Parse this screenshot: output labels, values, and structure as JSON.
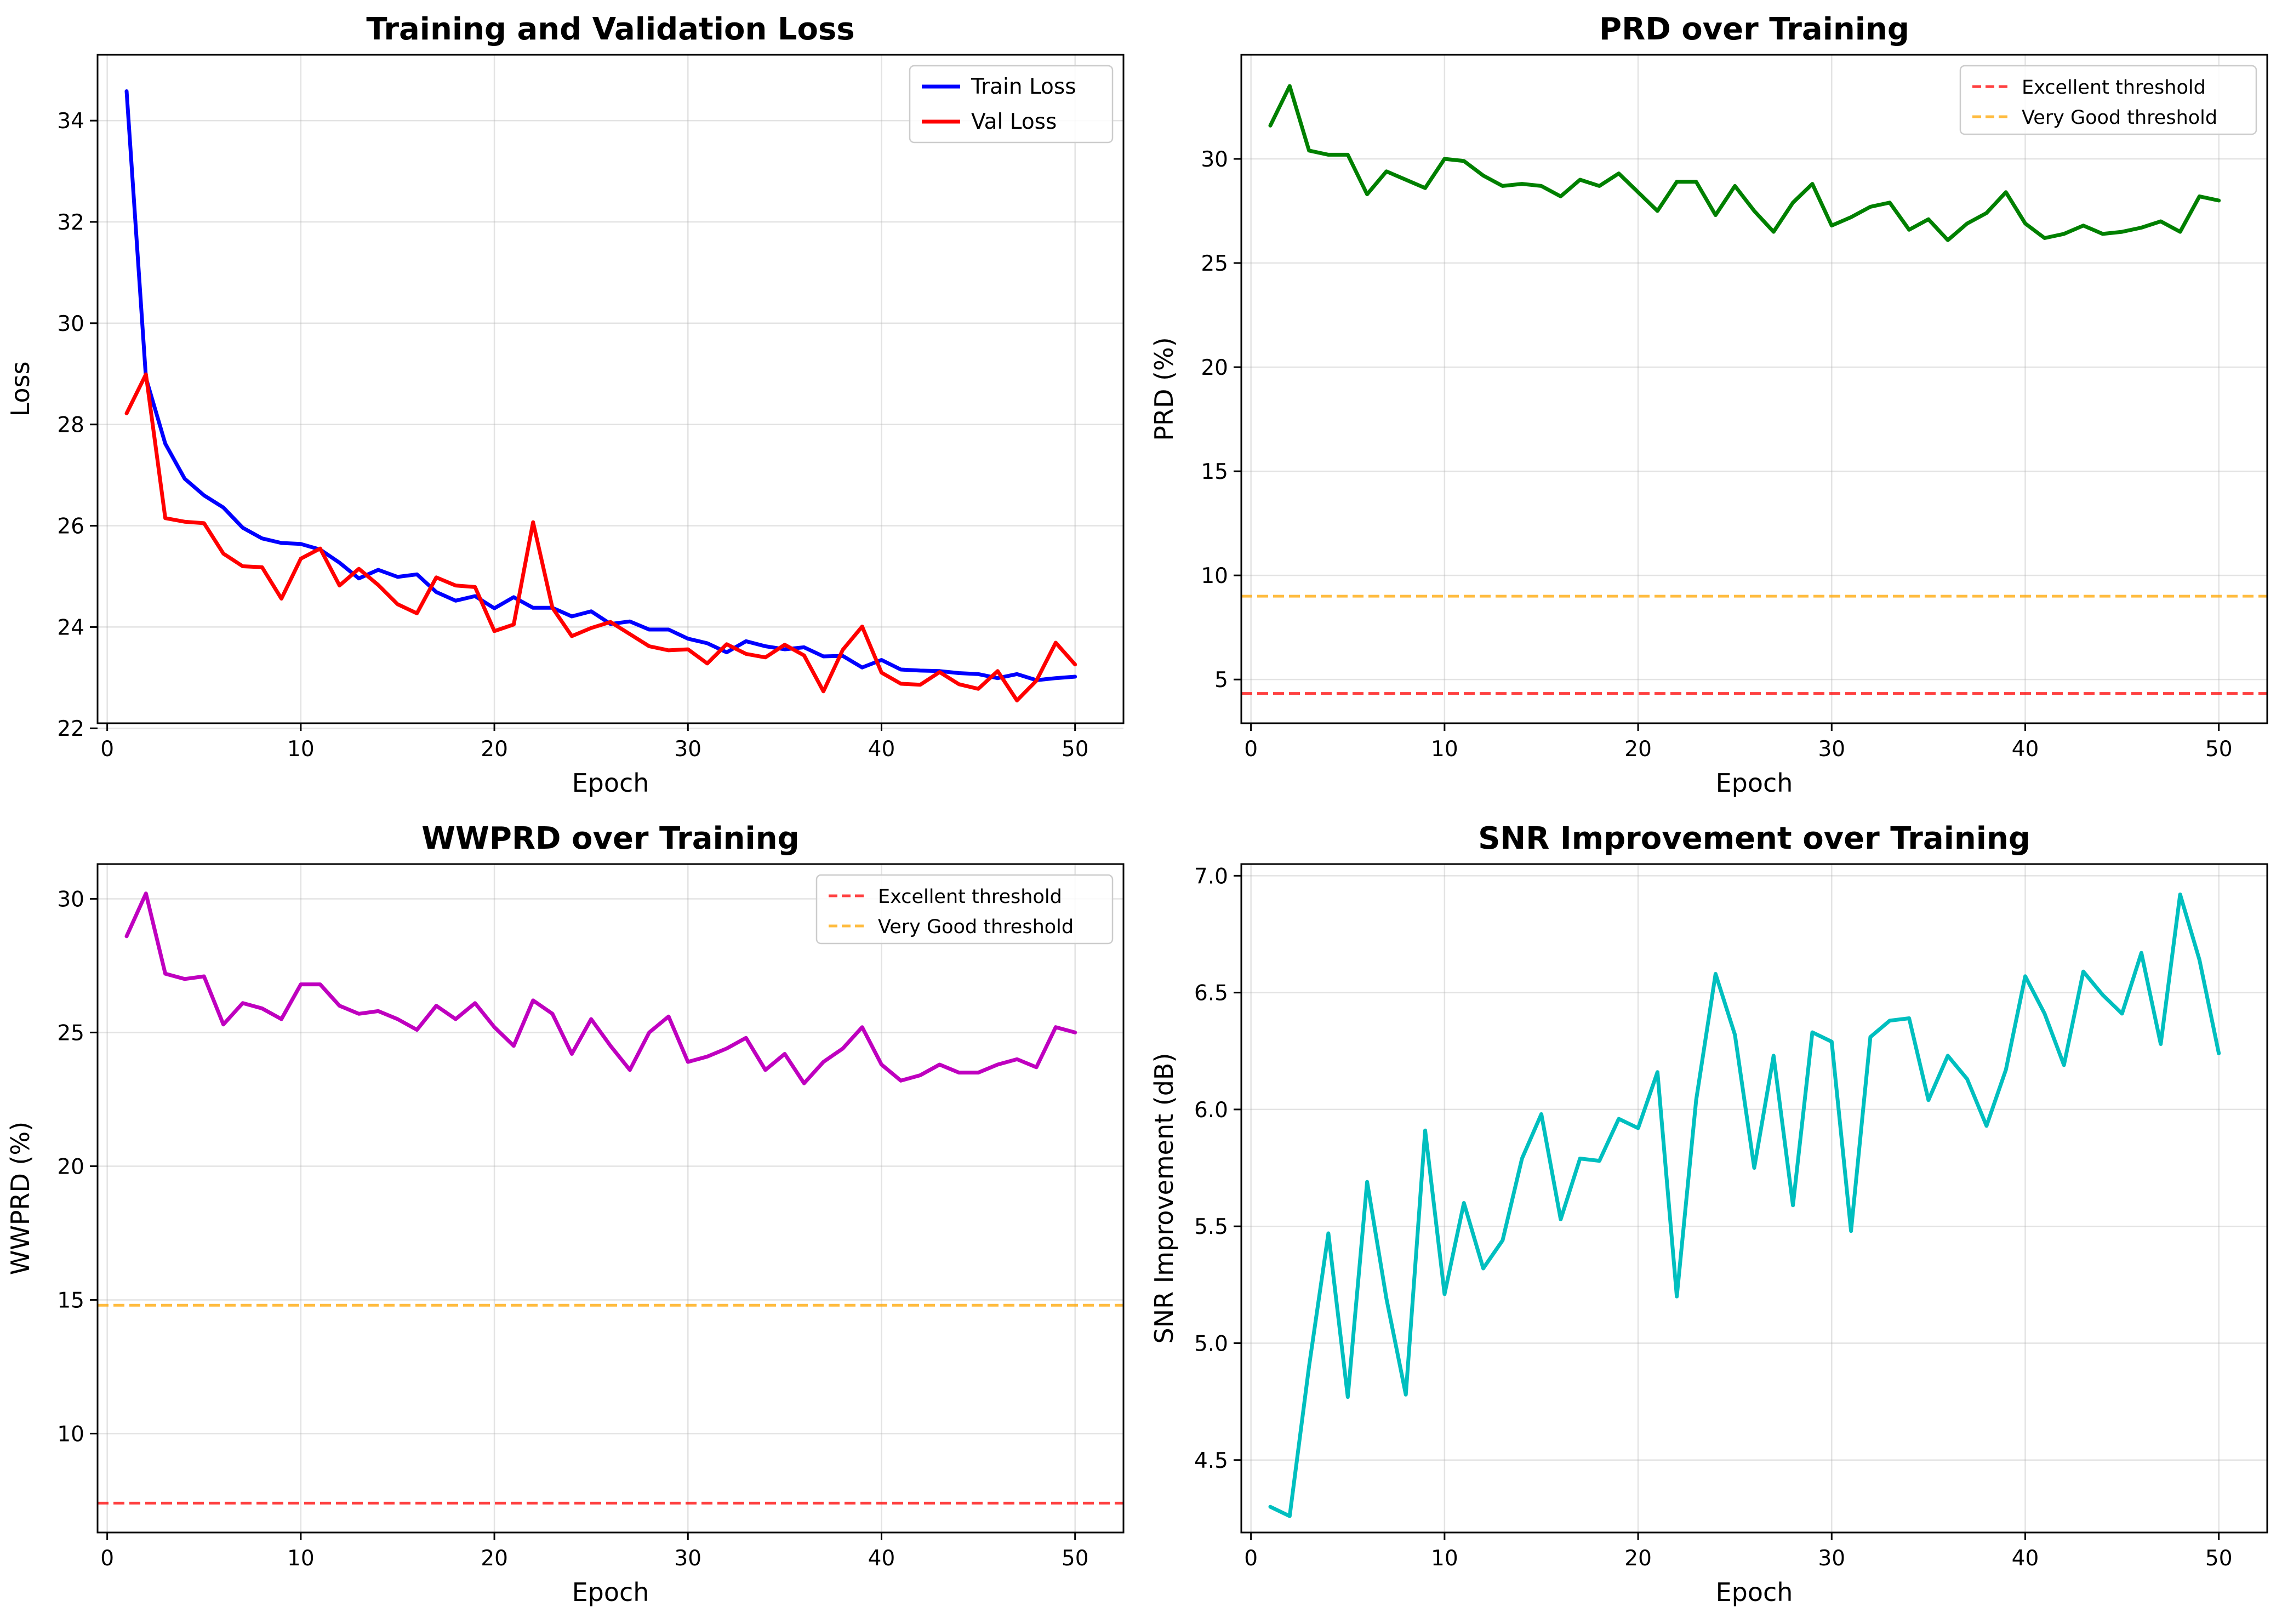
{
  "chart_data": [
    {
      "type": "line",
      "title": "Training and Validation Loss",
      "xlabel": "Epoch",
      "ylabel": "Loss",
      "xlim": [
        -0.5,
        52.5
      ],
      "ylim": [
        22.1,
        35.3
      ],
      "xticks": [
        0,
        10,
        20,
        30,
        40,
        50
      ],
      "yticks": [
        22,
        24,
        26,
        28,
        30,
        32,
        34
      ],
      "grid": true,
      "legend_position": "top-right",
      "x": [
        1,
        2,
        3,
        4,
        5,
        6,
        7,
        8,
        9,
        10,
        11,
        12,
        13,
        14,
        15,
        16,
        17,
        18,
        19,
        20,
        21,
        22,
        23,
        24,
        25,
        26,
        27,
        28,
        29,
        30,
        31,
        32,
        33,
        34,
        35,
        36,
        37,
        38,
        39,
        40,
        41,
        42,
        43,
        44,
        45,
        46,
        47,
        48,
        49,
        50
      ],
      "series": [
        {
          "name": "Train Loss",
          "color": "#0000ff",
          "dashed": false,
          "values": [
            34.58,
            28.92,
            27.62,
            26.93,
            26.6,
            26.36,
            25.96,
            25.75,
            25.66,
            25.64,
            25.53,
            25.27,
            24.96,
            25.13,
            24.99,
            25.04,
            24.69,
            24.52,
            24.61,
            24.37,
            24.59,
            24.38,
            24.38,
            24.21,
            24.31,
            24.06,
            24.11,
            23.95,
            23.95,
            23.77,
            23.68,
            23.5,
            23.72,
            23.62,
            23.56,
            23.6,
            23.42,
            23.43,
            23.2,
            23.35,
            23.16,
            23.14,
            23.13,
            23.09,
            23.07,
            22.99,
            23.07,
            22.95,
            22.99,
            23.02
          ]
        },
        {
          "name": "Val Loss",
          "color": "#ff0000",
          "dashed": false,
          "values": [
            28.22,
            28.99,
            26.15,
            26.08,
            26.05,
            25.45,
            25.2,
            25.18,
            24.56,
            25.35,
            25.55,
            24.82,
            25.15,
            24.83,
            24.45,
            24.27,
            24.98,
            24.82,
            24.79,
            23.92,
            24.05,
            26.07,
            24.38,
            23.82,
            23.98,
            24.1,
            23.86,
            23.62,
            23.54,
            23.56,
            23.28,
            23.66,
            23.47,
            23.4,
            23.65,
            23.44,
            22.73,
            23.55,
            24.01,
            23.1,
            22.88,
            22.86,
            23.11,
            22.87,
            22.78,
            23.13,
            22.55,
            22.94,
            23.69,
            23.26
          ]
        }
      ]
    },
    {
      "type": "line",
      "title": "PRD over Training",
      "xlabel": "Epoch",
      "ylabel": "PRD (%)",
      "xlim": [
        -0.5,
        52.5
      ],
      "ylim": [
        2.9,
        35.0
      ],
      "xticks": [
        0,
        10,
        20,
        30,
        40,
        50
      ],
      "yticks": [
        5,
        10,
        15,
        20,
        25,
        30
      ],
      "grid": true,
      "legend_position": "top-right",
      "x": [
        1,
        2,
        3,
        4,
        5,
        6,
        7,
        8,
        9,
        10,
        11,
        12,
        13,
        14,
        15,
        16,
        17,
        18,
        19,
        20,
        21,
        22,
        23,
        24,
        25,
        26,
        27,
        28,
        29,
        30,
        31,
        32,
        33,
        34,
        35,
        36,
        37,
        38,
        39,
        40,
        41,
        42,
        43,
        44,
        45,
        46,
        47,
        48,
        49,
        50
      ],
      "series": [
        {
          "name": "",
          "color": "#008000",
          "dashed": false,
          "values": [
            31.6,
            33.5,
            30.4,
            30.2,
            30.2,
            28.3,
            29.4,
            29.0,
            28.6,
            30.0,
            29.9,
            29.2,
            28.7,
            28.8,
            28.7,
            28.2,
            29.0,
            28.7,
            29.3,
            28.4,
            27.5,
            28.9,
            28.9,
            27.3,
            28.7,
            27.5,
            26.5,
            27.9,
            28.8,
            26.8,
            27.2,
            27.7,
            27.9,
            26.6,
            27.1,
            26.1,
            26.9,
            27.4,
            28.4,
            26.9,
            26.2,
            26.4,
            26.8,
            26.4,
            26.5,
            26.7,
            27.0,
            26.5,
            28.2,
            28.0
          ]
        }
      ],
      "reference_lines": [
        {
          "name": "Excellent threshold",
          "value": 4.33,
          "color": "#ff0000"
        },
        {
          "name": "Very Good threshold",
          "value": 9.0,
          "color": "#ffa500"
        }
      ]
    },
    {
      "type": "line",
      "title": "WWPRD over Training",
      "xlabel": "Epoch",
      "ylabel": "WWPRD (%)",
      "xlim": [
        -0.5,
        52.5
      ],
      "ylim": [
        6.3,
        31.3
      ],
      "xticks": [
        0,
        10,
        20,
        30,
        40,
        50
      ],
      "yticks": [
        10,
        15,
        20,
        25,
        30
      ],
      "grid": true,
      "legend_position": "top-right",
      "x": [
        1,
        2,
        3,
        4,
        5,
        6,
        7,
        8,
        9,
        10,
        11,
        12,
        13,
        14,
        15,
        16,
        17,
        18,
        19,
        20,
        21,
        22,
        23,
        24,
        25,
        26,
        27,
        28,
        29,
        30,
        31,
        32,
        33,
        34,
        35,
        36,
        37,
        38,
        39,
        40,
        41,
        42,
        43,
        44,
        45,
        46,
        47,
        48,
        49,
        50
      ],
      "series": [
        {
          "name": "",
          "color": "#bf00bf",
          "dashed": false,
          "values": [
            28.6,
            30.2,
            27.2,
            27.0,
            27.1,
            25.3,
            26.1,
            25.9,
            25.5,
            26.8,
            26.8,
            26.0,
            25.7,
            25.8,
            25.5,
            25.1,
            26.0,
            25.5,
            26.1,
            25.2,
            24.5,
            26.2,
            25.7,
            24.2,
            25.5,
            24.5,
            23.6,
            25.0,
            25.6,
            23.9,
            24.1,
            24.4,
            24.8,
            23.6,
            24.2,
            23.1,
            23.9,
            24.4,
            25.2,
            23.8,
            23.2,
            23.4,
            23.8,
            23.5,
            23.5,
            23.8,
            24.0,
            23.7,
            25.2,
            25.0
          ]
        }
      ],
      "reference_lines": [
        {
          "name": "Excellent threshold",
          "value": 7.4,
          "color": "#ff0000"
        },
        {
          "name": "Very Good threshold",
          "value": 14.8,
          "color": "#ffa500"
        }
      ]
    },
    {
      "type": "line",
      "title": "SNR Improvement over Training",
      "xlabel": "Epoch",
      "ylabel": "SNR Improvement (dB)",
      "xlim": [
        -0.5,
        52.5
      ],
      "ylim": [
        4.19,
        7.05
      ],
      "xticks": [
        0,
        10,
        20,
        30,
        40,
        50
      ],
      "yticks": [
        4.5,
        5.0,
        5.5,
        6.0,
        6.5,
        7.0
      ],
      "yticklabels": [
        "4.5",
        "5.0",
        "5.5",
        "6.0",
        "6.5",
        "7.0"
      ],
      "grid": true,
      "legend_position": "none",
      "x": [
        1,
        2,
        3,
        4,
        5,
        6,
        7,
        8,
        9,
        10,
        11,
        12,
        13,
        14,
        15,
        16,
        17,
        18,
        19,
        20,
        21,
        22,
        23,
        24,
        25,
        26,
        27,
        28,
        29,
        30,
        31,
        32,
        33,
        34,
        35,
        36,
        37,
        38,
        39,
        40,
        41,
        42,
        43,
        44,
        45,
        46,
        47,
        48,
        49,
        50
      ],
      "series": [
        {
          "name": "",
          "color": "#00bfbf",
          "dashed": false,
          "values": [
            4.3,
            4.26,
            4.9,
            5.47,
            4.77,
            5.69,
            5.19,
            4.78,
            5.91,
            5.21,
            5.6,
            5.32,
            5.44,
            5.79,
            5.98,
            5.53,
            5.79,
            5.78,
            5.96,
            5.92,
            6.16,
            5.2,
            6.04,
            6.58,
            6.32,
            5.75,
            6.23,
            5.59,
            6.33,
            6.29,
            5.48,
            6.31,
            6.38,
            6.39,
            6.04,
            6.23,
            6.13,
            5.93,
            6.17,
            6.57,
            6.41,
            6.19,
            6.59,
            6.49,
            6.41,
            6.67,
            6.28,
            6.92,
            6.64,
            6.24
          ]
        }
      ]
    }
  ]
}
